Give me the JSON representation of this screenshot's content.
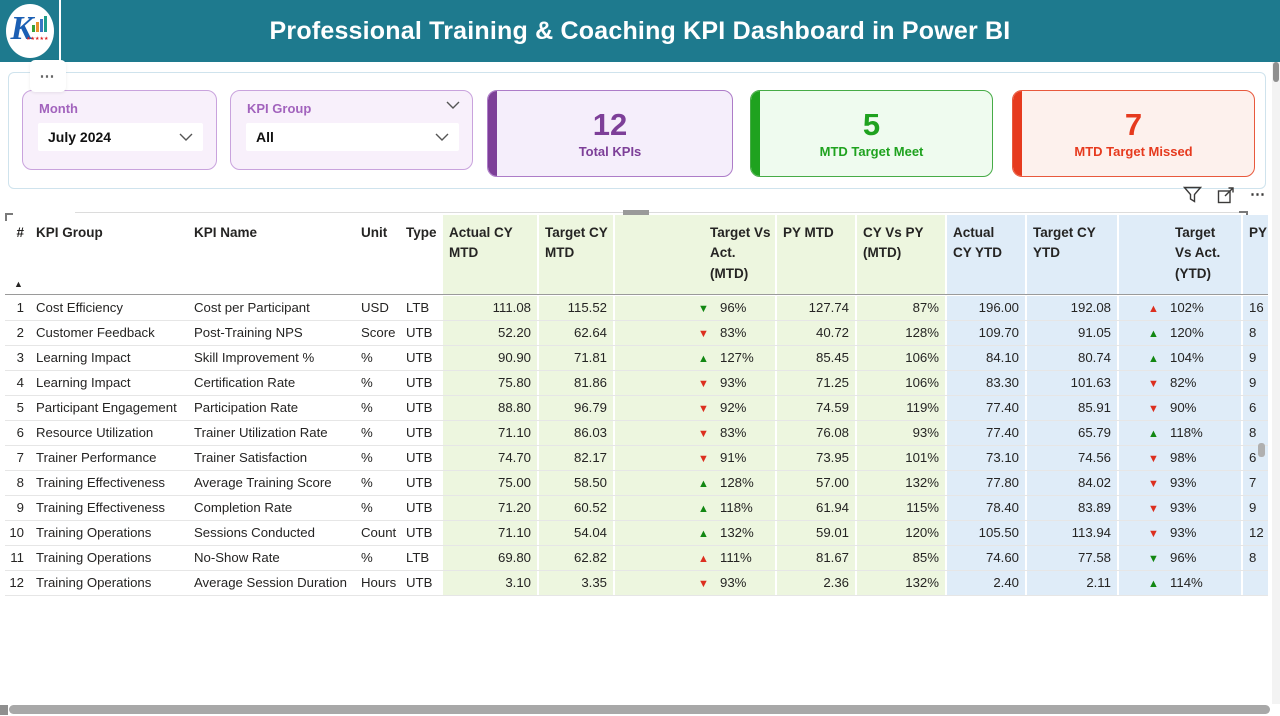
{
  "header": {
    "title": "Professional Training & Coaching KPI Dashboard in Power BI",
    "logo": {
      "letter": "K",
      "stars": "★★★★★"
    }
  },
  "page_more_glyph": "⋯",
  "slicers": {
    "month": {
      "label": "Month",
      "value": "July 2024"
    },
    "kpi_group": {
      "label": "KPI Group",
      "value": "All"
    }
  },
  "cards": [
    {
      "value": "12",
      "label": "Total KPIs",
      "theme": "purple"
    },
    {
      "value": "5",
      "label": "MTD Target Meet",
      "theme": "green"
    },
    {
      "value": "7",
      "label": "MTD Target Missed",
      "theme": "red"
    }
  ],
  "visual_toolbar": {
    "filter_icon": "funnel",
    "focus_icon": "focus-mode",
    "more_glyph": "⋯"
  },
  "colors": {
    "header_bg": "#1e7a8e",
    "purple_accent": "#7d3f98",
    "green_accent": "#1fa21f",
    "red_accent": "#e63a1e",
    "mtd_section_bg": "#edf6df",
    "ytd_section_bg": "#dfecf8",
    "arrow_green": "#128712",
    "arrow_red": "#dc2f1f",
    "slicer_label": "#a263bd"
  },
  "table": {
    "sort_indicator": "▲",
    "icons": {
      "up": "▲",
      "down": "▼"
    },
    "columns": [
      {
        "key": "n",
        "label": "#",
        "section": "plain",
        "align": "right"
      },
      {
        "key": "group",
        "label": "KPI Group",
        "section": "plain"
      },
      {
        "key": "name",
        "label": "KPI Name",
        "section": "plain"
      },
      {
        "key": "unit",
        "label": "Unit",
        "section": "plain"
      },
      {
        "key": "type",
        "label": "Type",
        "section": "plain"
      },
      {
        "key": "a_mtd",
        "label": "Actual CY\nMTD",
        "section": "green",
        "align": "right"
      },
      {
        "key": "t_mtd",
        "label": "Target CY\nMTD",
        "section": "green",
        "align": "right"
      },
      {
        "key": "tva_mtd",
        "label": "Target Vs\nAct.\n(MTD)",
        "section": "green",
        "type": "arrow"
      },
      {
        "key": "py_mtd",
        "label": "PY MTD",
        "section": "green",
        "align": "right"
      },
      {
        "key": "cvp_mtd",
        "label": "CY Vs PY\n(MTD)",
        "section": "green",
        "align": "right"
      },
      {
        "key": "a_ytd",
        "label": "Actual\nCY YTD",
        "section": "blue",
        "align": "right"
      },
      {
        "key": "t_ytd",
        "label": "Target CY\nYTD",
        "section": "blue",
        "align": "right"
      },
      {
        "key": "tva_ytd",
        "label": "Target\nVs Act.\n(YTD)",
        "section": "blue",
        "type": "arrow"
      },
      {
        "key": "py_ytd",
        "label": "PY",
        "section": "blue"
      }
    ],
    "rows": [
      {
        "n": "1",
        "group": "Cost Efficiency",
        "name": "Cost per Participant",
        "unit": "USD",
        "type": "LTB",
        "a_mtd": "111.08",
        "t_mtd": "115.52",
        "tva_mtd": {
          "dir": "down",
          "color": "green",
          "text": "96%"
        },
        "py_mtd": "127.74",
        "cvp_mtd": "87%",
        "a_ytd": "196.00",
        "t_ytd": "192.08",
        "tva_ytd": {
          "dir": "up",
          "color": "red",
          "text": "102%"
        },
        "py_ytd": "16"
      },
      {
        "n": "2",
        "group": "Customer Feedback",
        "name": "Post-Training NPS",
        "unit": "Score",
        "type": "UTB",
        "a_mtd": "52.20",
        "t_mtd": "62.64",
        "tva_mtd": {
          "dir": "down",
          "color": "red",
          "text": "83%"
        },
        "py_mtd": "40.72",
        "cvp_mtd": "128%",
        "a_ytd": "109.70",
        "t_ytd": "91.05",
        "tva_ytd": {
          "dir": "up",
          "color": "green",
          "text": "120%"
        },
        "py_ytd": "8"
      },
      {
        "n": "3",
        "group": "Learning Impact",
        "name": "Skill Improvement %",
        "unit": "%",
        "type": "UTB",
        "a_mtd": "90.90",
        "t_mtd": "71.81",
        "tva_mtd": {
          "dir": "up",
          "color": "green",
          "text": "127%"
        },
        "py_mtd": "85.45",
        "cvp_mtd": "106%",
        "a_ytd": "84.10",
        "t_ytd": "80.74",
        "tva_ytd": {
          "dir": "up",
          "color": "green",
          "text": "104%"
        },
        "py_ytd": "9"
      },
      {
        "n": "4",
        "group": "Learning Impact",
        "name": "Certification Rate",
        "unit": "%",
        "type": "UTB",
        "a_mtd": "75.80",
        "t_mtd": "81.86",
        "tva_mtd": {
          "dir": "down",
          "color": "red",
          "text": "93%"
        },
        "py_mtd": "71.25",
        "cvp_mtd": "106%",
        "a_ytd": "83.30",
        "t_ytd": "101.63",
        "tva_ytd": {
          "dir": "down",
          "color": "red",
          "text": "82%"
        },
        "py_ytd": "9"
      },
      {
        "n": "5",
        "group": "Participant Engagement",
        "name": "Participation Rate",
        "unit": "%",
        "type": "UTB",
        "a_mtd": "88.80",
        "t_mtd": "96.79",
        "tva_mtd": {
          "dir": "down",
          "color": "red",
          "text": "92%"
        },
        "py_mtd": "74.59",
        "cvp_mtd": "119%",
        "a_ytd": "77.40",
        "t_ytd": "85.91",
        "tva_ytd": {
          "dir": "down",
          "color": "red",
          "text": "90%"
        },
        "py_ytd": "6"
      },
      {
        "n": "6",
        "group": "Resource Utilization",
        "name": "Trainer Utilization Rate",
        "unit": "%",
        "type": "UTB",
        "a_mtd": "71.10",
        "t_mtd": "86.03",
        "tva_mtd": {
          "dir": "down",
          "color": "red",
          "text": "83%"
        },
        "py_mtd": "76.08",
        "cvp_mtd": "93%",
        "a_ytd": "77.40",
        "t_ytd": "65.79",
        "tva_ytd": {
          "dir": "up",
          "color": "green",
          "text": "118%"
        },
        "py_ytd": "8"
      },
      {
        "n": "7",
        "group": "Trainer Performance",
        "name": "Trainer Satisfaction",
        "unit": "%",
        "type": "UTB",
        "a_mtd": "74.70",
        "t_mtd": "82.17",
        "tva_mtd": {
          "dir": "down",
          "color": "red",
          "text": "91%"
        },
        "py_mtd": "73.95",
        "cvp_mtd": "101%",
        "a_ytd": "73.10",
        "t_ytd": "74.56",
        "tva_ytd": {
          "dir": "down",
          "color": "red",
          "text": "98%"
        },
        "py_ytd": "6"
      },
      {
        "n": "8",
        "group": "Training Effectiveness",
        "name": "Average Training Score",
        "unit": "%",
        "type": "UTB",
        "a_mtd": "75.00",
        "t_mtd": "58.50",
        "tva_mtd": {
          "dir": "up",
          "color": "green",
          "text": "128%"
        },
        "py_mtd": "57.00",
        "cvp_mtd": "132%",
        "a_ytd": "77.80",
        "t_ytd": "84.02",
        "tva_ytd": {
          "dir": "down",
          "color": "red",
          "text": "93%"
        },
        "py_ytd": "7"
      },
      {
        "n": "9",
        "group": "Training Effectiveness",
        "name": "Completion Rate",
        "unit": "%",
        "type": "UTB",
        "a_mtd": "71.20",
        "t_mtd": "60.52",
        "tva_mtd": {
          "dir": "up",
          "color": "green",
          "text": "118%"
        },
        "py_mtd": "61.94",
        "cvp_mtd": "115%",
        "a_ytd": "78.40",
        "t_ytd": "83.89",
        "tva_ytd": {
          "dir": "down",
          "color": "red",
          "text": "93%"
        },
        "py_ytd": "9"
      },
      {
        "n": "10",
        "group": "Training Operations",
        "name": "Sessions Conducted",
        "unit": "Count",
        "type": "UTB",
        "a_mtd": "71.10",
        "t_mtd": "54.04",
        "tva_mtd": {
          "dir": "up",
          "color": "green",
          "text": "132%"
        },
        "py_mtd": "59.01",
        "cvp_mtd": "120%",
        "a_ytd": "105.50",
        "t_ytd": "113.94",
        "tva_ytd": {
          "dir": "down",
          "color": "red",
          "text": "93%"
        },
        "py_ytd": "12"
      },
      {
        "n": "11",
        "group": "Training Operations",
        "name": "No-Show Rate",
        "unit": "%",
        "type": "LTB",
        "a_mtd": "69.80",
        "t_mtd": "62.82",
        "tva_mtd": {
          "dir": "up",
          "color": "red",
          "text": "111%"
        },
        "py_mtd": "81.67",
        "cvp_mtd": "85%",
        "a_ytd": "74.60",
        "t_ytd": "77.58",
        "tva_ytd": {
          "dir": "down",
          "color": "green",
          "text": "96%"
        },
        "py_ytd": "8"
      },
      {
        "n": "12",
        "group": "Training Operations",
        "name": "Average Session Duration",
        "unit": "Hours",
        "type": "UTB",
        "a_mtd": "3.10",
        "t_mtd": "3.35",
        "tva_mtd": {
          "dir": "down",
          "color": "red",
          "text": "93%"
        },
        "py_mtd": "2.36",
        "cvp_mtd": "132%",
        "a_ytd": "2.40",
        "t_ytd": "2.11",
        "tva_ytd": {
          "dir": "up",
          "color": "green",
          "text": "114%"
        },
        "py_ytd": ""
      }
    ]
  }
}
